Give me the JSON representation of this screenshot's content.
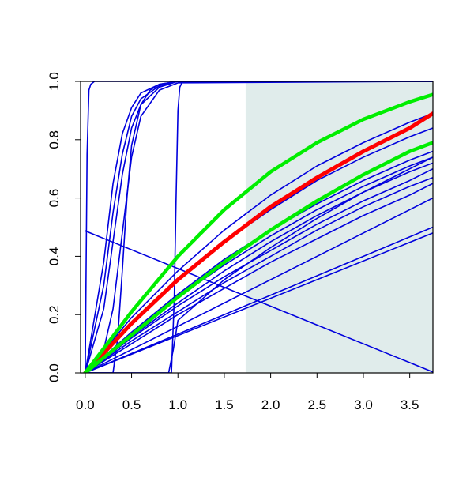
{
  "chart_data": {
    "type": "line",
    "title": "",
    "xlabel": "",
    "ylabel": "",
    "xlim": [
      -0.05,
      3.75
    ],
    "ylim": [
      0.0,
      1.0
    ],
    "x_ticks": [
      "0.0",
      "0.5",
      "1.0",
      "1.5",
      "2.0",
      "2.5",
      "3.0",
      "3.5"
    ],
    "x_tick_values": [
      0.0,
      0.5,
      1.0,
      1.5,
      2.0,
      2.5,
      3.0,
      3.5
    ],
    "y_ticks": [
      "0.0",
      "0.2",
      "0.4",
      "0.6",
      "0.8",
      "1.0"
    ],
    "y_tick_values": [
      0.0,
      0.2,
      0.4,
      0.6,
      0.8,
      1.0
    ],
    "shaded_region": {
      "x_from": 1.73,
      "x_to": 3.75,
      "color": "#e0eceb"
    },
    "colors": {
      "curves": "#0000dd",
      "highlight": "#ff0000",
      "bounds": "#00ee00",
      "axes": "#000000"
    },
    "series": [
      {
        "color": "blue",
        "x": [
          0,
          0.02,
          0.04,
          0.06,
          0.1,
          0.2,
          3.75
        ],
        "y": [
          0,
          0.75,
          0.97,
          0.99,
          1.0,
          1.0,
          1.0
        ]
      },
      {
        "color": "blue",
        "x": [
          0,
          0.2,
          0.3,
          0.4,
          0.5,
          0.6,
          0.8,
          1.0,
          3.75
        ],
        "y": [
          0,
          0.38,
          0.65,
          0.82,
          0.91,
          0.96,
          0.99,
          1.0,
          1.0
        ]
      },
      {
        "color": "blue",
        "x": [
          0,
          0.2,
          0.3,
          0.4,
          0.5,
          0.6,
          0.8,
          1.0,
          3.75
        ],
        "y": [
          0,
          0.3,
          0.55,
          0.75,
          0.88,
          0.94,
          0.985,
          1.0,
          1.0
        ]
      },
      {
        "color": "blue",
        "x": [
          0,
          0.2,
          0.3,
          0.4,
          0.5,
          0.6,
          0.8,
          1.0,
          3.75
        ],
        "y": [
          0,
          0.22,
          0.45,
          0.68,
          0.84,
          0.92,
          0.98,
          1.0,
          1.0
        ]
      },
      {
        "color": "blue",
        "x": [
          0,
          0.1,
          0.2,
          0.3,
          0.4,
          0.5,
          0.6,
          0.8,
          1.0,
          3.75
        ],
        "y": [
          0,
          0.02,
          0.08,
          0.22,
          0.48,
          0.74,
          0.88,
          0.97,
          0.995,
          1.0
        ]
      },
      {
        "color": "blue",
        "x": [
          0,
          0.3,
          0.35,
          0.4,
          0.45,
          0.5,
          0.6,
          0.7,
          0.8,
          1.0,
          3.75
        ],
        "y": [
          0,
          0.0,
          0.12,
          0.35,
          0.6,
          0.78,
          0.92,
          0.97,
          0.99,
          1.0,
          1.0
        ]
      },
      {
        "color": "blue",
        "x": [
          0,
          0.93,
          0.96,
          0.98,
          1.0,
          1.02,
          1.05,
          1.1,
          3.75
        ],
        "y": [
          0,
          0.0,
          0.25,
          0.6,
          0.9,
          0.98,
          1.0,
          1.0,
          1.0
        ]
      },
      {
        "color": "blue",
        "x": [
          0,
          3.75
        ],
        "y": [
          0.487,
          0.003
        ]
      },
      {
        "color": "blue",
        "x": [
          0,
          0.5,
          1.0,
          1.5,
          2.0,
          2.5,
          3.0,
          3.5,
          3.75
        ],
        "y": [
          0,
          0.19,
          0.35,
          0.49,
          0.61,
          0.71,
          0.79,
          0.86,
          0.89
        ]
      },
      {
        "color": "blue",
        "x": [
          0,
          0.5,
          1.0,
          1.5,
          2.0,
          2.5,
          3.0,
          3.5,
          3.75
        ],
        "y": [
          0,
          0.17,
          0.32,
          0.45,
          0.56,
          0.66,
          0.74,
          0.81,
          0.84
        ]
      },
      {
        "color": "blue",
        "x": [
          0,
          0.5,
          1.0,
          1.5,
          2.0,
          2.5,
          3.0,
          3.5,
          3.75
        ],
        "y": [
          0,
          0.14,
          0.27,
          0.39,
          0.49,
          0.58,
          0.66,
          0.73,
          0.76
        ]
      },
      {
        "color": "blue",
        "x": [
          0,
          0.5,
          1.0,
          1.5,
          2.0,
          2.5,
          3.0,
          3.5,
          3.75
        ],
        "y": [
          0,
          0.135,
          0.26,
          0.37,
          0.47,
          0.56,
          0.64,
          0.71,
          0.74
        ]
      },
      {
        "color": "blue",
        "x": [
          0,
          0.5,
          1.0,
          1.5,
          2.0,
          2.5,
          3.0,
          3.5,
          3.75
        ],
        "y": [
          0,
          0.125,
          0.24,
          0.35,
          0.45,
          0.54,
          0.62,
          0.69,
          0.72
        ]
      },
      {
        "color": "blue",
        "x": [
          0,
          0.5,
          1.0,
          1.5,
          2.0,
          2.5,
          3.0,
          3.5,
          3.75
        ],
        "y": [
          0,
          0.12,
          0.23,
          0.33,
          0.42,
          0.51,
          0.59,
          0.66,
          0.7
        ]
      },
      {
        "color": "blue",
        "x": [
          0,
          0.5,
          1.0,
          1.5,
          2.0,
          2.5,
          3.0,
          3.5,
          3.75
        ],
        "y": [
          0,
          0.11,
          0.21,
          0.31,
          0.4,
          0.49,
          0.57,
          0.64,
          0.67
        ]
      },
      {
        "color": "blue",
        "x": [
          0,
          0.5,
          1.0,
          1.5,
          2.0,
          2.5,
          3.0,
          3.5,
          3.75
        ],
        "y": [
          0,
          0.1,
          0.2,
          0.29,
          0.38,
          0.46,
          0.54,
          0.61,
          0.65
        ]
      },
      {
        "color": "blue",
        "x": [
          0,
          3.75
        ],
        "y": [
          0,
          0.6
        ]
      },
      {
        "color": "blue",
        "x": [
          0,
          3.75
        ],
        "y": [
          0,
          0.5
        ]
      },
      {
        "color": "blue",
        "x": [
          0,
          3.75
        ],
        "y": [
          0,
          0.48
        ]
      },
      {
        "color": "blue",
        "x": [
          0,
          0.9,
          0.95,
          1.0,
          1.5,
          2.0,
          2.5,
          3.0,
          3.5,
          3.75
        ],
        "y": [
          0,
          0.0,
          0.08,
          0.18,
          0.32,
          0.43,
          0.53,
          0.62,
          0.7,
          0.74
        ]
      },
      {
        "color": "red",
        "x": [
          0,
          0.5,
          1.0,
          1.5,
          2.0,
          2.5,
          3.0,
          3.5,
          3.75
        ],
        "y": [
          0,
          0.17,
          0.32,
          0.45,
          0.57,
          0.67,
          0.76,
          0.84,
          0.89
        ]
      },
      {
        "color": "green",
        "x": [
          0,
          0.5,
          1.0,
          1.5,
          2.0,
          2.5,
          3.0,
          3.5,
          3.75
        ],
        "y": [
          0,
          0.21,
          0.4,
          0.56,
          0.69,
          0.79,
          0.87,
          0.93,
          0.955
        ]
      },
      {
        "color": "green",
        "x": [
          0,
          0.5,
          1.0,
          1.5,
          2.0,
          2.5,
          3.0,
          3.5,
          3.75
        ],
        "y": [
          0,
          0.13,
          0.26,
          0.38,
          0.49,
          0.59,
          0.68,
          0.76,
          0.79
        ]
      }
    ]
  }
}
